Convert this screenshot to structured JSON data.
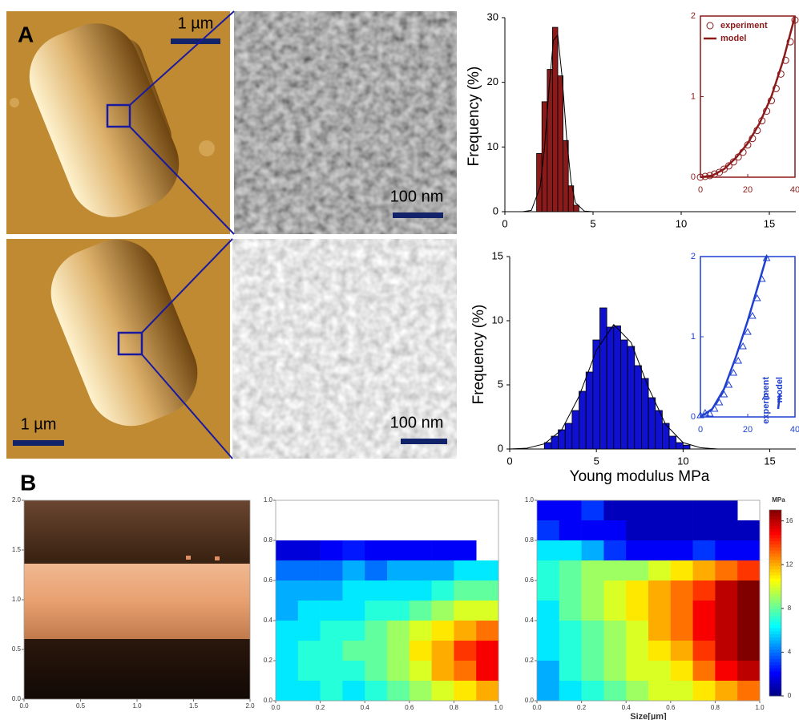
{
  "figure": {
    "panels": [
      "A",
      "B"
    ],
    "scale_bars": [
      "1 µm",
      "100 nm",
      "1 µm",
      "100 nm"
    ]
  },
  "chart_data": [
    {
      "type": "histogram",
      "color": "#8b1a1a",
      "bins": [
        1.8,
        2.1,
        2.4,
        2.7,
        3.0,
        3.3,
        3.6,
        3.9,
        4.2
      ],
      "values": [
        9,
        17,
        22,
        28.5,
        21,
        11,
        4,
        1
      ],
      "fit": {
        "x": [
          0,
          1,
          1.5,
          2,
          2.25,
          2.5,
          2.75,
          3,
          3.25,
          3.5,
          3.75,
          4,
          4.5,
          5,
          16.5
        ],
        "values": [
          0,
          0,
          0.2,
          3.8,
          9.9,
          18.9,
          26.5,
          27.3,
          20.7,
          11.5,
          4.7,
          1.4,
          0.1,
          0,
          0
        ]
      },
      "xlim": [
        0,
        16.5
      ],
      "xticks": [
        0,
        5,
        10,
        15
      ],
      "ylim": [
        0,
        30
      ],
      "yticks": [
        0,
        10,
        20,
        30
      ],
      "ylabel": "Frequency (%)",
      "inset": {
        "type": "scatter",
        "color": "#8b1a1a",
        "xlim": [
          0,
          40
        ],
        "xticks": [
          0,
          20,
          40
        ],
        "ylim": [
          0,
          2
        ],
        "yticks": [
          0,
          1,
          2
        ],
        "legend": "top-left",
        "series": [
          {
            "name": "experiment",
            "marker": "circle",
            "x": [
              0,
              2,
              4,
              6,
              8,
              10,
              12,
              14,
              16,
              18,
              20,
              22,
              24,
              26,
              28,
              30,
              32,
              34,
              36,
              38,
              40
            ],
            "values": [
              0,
              0.01,
              0.02,
              0.04,
              0.06,
              0.1,
              0.14,
              0.19,
              0.25,
              0.31,
              0.4,
              0.48,
              0.58,
              0.7,
              0.82,
              0.95,
              1.1,
              1.28,
              1.45,
              1.68,
              1.95
            ]
          },
          {
            "name": "model",
            "marker": "line",
            "x": [
              0,
              5,
              10,
              15,
              20,
              25,
              30,
              35,
              40
            ],
            "values": [
              0,
              0.02,
              0.1,
              0.24,
              0.42,
              0.67,
              1.0,
              1.45,
              2.0
            ]
          }
        ]
      }
    },
    {
      "type": "histogram",
      "color": "#1010d0",
      "bins": [
        2.0,
        2.4,
        2.8,
        3.2,
        3.6,
        4.0,
        4.4,
        4.8,
        5.2,
        5.6,
        6.0,
        6.4,
        6.8,
        7.2,
        7.6,
        8.0,
        8.4,
        8.8,
        9.2,
        9.6,
        10.0,
        10.4
      ],
      "values": [
        0.5,
        1,
        1.5,
        2,
        3,
        4.5,
        6,
        8.5,
        11,
        9.5,
        9.6,
        8.5,
        8,
        6.5,
        5.5,
        4,
        3,
        2,
        1,
        0.5,
        0.3
      ],
      "fit": {
        "x": [
          0,
          1,
          2,
          3,
          4,
          5,
          6,
          7,
          8,
          9,
          10,
          11,
          12,
          16.5
        ],
        "values": [
          0,
          0.06,
          0.4,
          1.5,
          4.1,
          7.7,
          9.7,
          8.3,
          4.8,
          1.9,
          0.5,
          0.1,
          0,
          0
        ]
      },
      "xlim": [
        0,
        16.5
      ],
      "xticks": [
        0,
        5,
        10,
        15
      ],
      "ylim": [
        0,
        15
      ],
      "yticks": [
        0,
        5,
        10,
        15
      ],
      "ylabel": "Frequency (%)",
      "xlabel": "Young modulus MPa",
      "inset": {
        "type": "scatter",
        "color": "#1f3fd0",
        "xlim": [
          0,
          40
        ],
        "xticks": [
          0,
          20,
          40
        ],
        "ylim": [
          0,
          2
        ],
        "yticks": [
          0,
          1,
          2
        ],
        "legend": "right-vertical",
        "series": [
          {
            "name": "experiment",
            "marker": "triangle",
            "x": [
              0,
              2,
              4,
              6,
              8,
              10,
              12,
              14,
              16,
              18,
              20,
              22,
              24,
              26,
              28
            ],
            "values": [
              0.02,
              0.05,
              0.04,
              0.1,
              0.18,
              0.28,
              0.4,
              0.55,
              0.7,
              0.88,
              1.06,
              1.26,
              1.48,
              1.72,
              1.98
            ]
          },
          {
            "name": "model",
            "marker": "line",
            "x": [
              0,
              5,
              10,
              15,
              20,
              25,
              28
            ],
            "values": [
              0,
              0.1,
              0.35,
              0.75,
              1.2,
              1.7,
              2.0
            ]
          }
        ]
      }
    },
    {
      "type": "image",
      "xlim": [
        0,
        2
      ],
      "xticks": [
        {
          "value": 0,
          "label": "0.0"
        },
        0.5,
        {
          "value": 1,
          "label": "1.0"
        },
        1.5,
        {
          "value": 2,
          "label": "2.0"
        }
      ],
      "ylim": [
        0,
        2
      ],
      "yticks": [
        {
          "value": 0,
          "label": "0.0"
        },
        0.5,
        {
          "value": 1,
          "label": "1.0"
        },
        1.5,
        {
          "value": 2,
          "label": "2.0"
        }
      ]
    },
    {
      "type": "heatmap",
      "colormap": "jet",
      "clim": [
        0,
        17
      ],
      "xlim": [
        0,
        1
      ],
      "xticks": [
        {
          "value": 0,
          "label": "0.0"
        },
        0.2,
        0.4,
        0.6,
        0.8,
        {
          "value": 1,
          "label": "1.0"
        }
      ],
      "ylim": [
        0,
        1
      ],
      "yticks": [
        {
          "value": 0,
          "label": "0.0"
        },
        0.2,
        0.4,
        0.6,
        0.8,
        {
          "value": 1,
          "label": "1.0"
        }
      ],
      "values": [
        [
          null,
          null,
          null,
          null,
          null,
          null,
          null,
          null,
          null,
          null
        ],
        [
          null,
          null,
          null,
          null,
          null,
          null,
          null,
          null,
          null,
          null
        ],
        [
          1.5,
          1.5,
          2,
          2.5,
          2,
          2,
          2,
          2,
          2,
          null
        ],
        [
          4,
          4,
          4,
          5,
          4,
          5,
          5,
          5,
          6,
          6
        ],
        [
          5,
          5,
          5,
          6,
          6,
          6,
          6,
          7,
          8,
          8
        ],
        [
          5,
          6,
          6,
          6,
          7,
          7,
          8,
          9,
          10,
          10
        ],
        [
          6,
          6,
          7,
          7,
          8,
          9,
          10,
          11,
          12,
          13
        ],
        [
          6,
          7,
          7,
          8,
          8,
          9,
          11,
          12,
          14,
          15
        ],
        [
          6,
          7,
          7,
          7,
          8,
          9,
          10,
          12,
          13,
          15
        ],
        [
          6,
          6,
          7,
          6,
          7,
          8,
          9,
          10,
          11,
          12
        ]
      ]
    },
    {
      "type": "heatmap",
      "colormap": "jet",
      "clim": [
        0,
        17
      ],
      "xlim": [
        0,
        1
      ],
      "xticks": [
        {
          "value": 0,
          "label": "0.0"
        },
        0.2,
        0.4,
        0.6,
        0.8,
        {
          "value": 1,
          "label": "1.0"
        }
      ],
      "ylim": [
        0,
        1
      ],
      "yticks": [
        {
          "value": 0,
          "label": "0.0"
        },
        0.2,
        0.4,
        0.6,
        0.8,
        {
          "value": 1,
          "label": "1.0"
        }
      ],
      "xlabel": "Size[µm]",
      "colorbar": {
        "label": "MPa",
        "ticks": [
          0,
          4,
          8,
          12,
          16
        ]
      },
      "values": [
        [
          2,
          2,
          3,
          1,
          1,
          1,
          1,
          1,
          1,
          null
        ],
        [
          3,
          2,
          2,
          2,
          1,
          1,
          1,
          1,
          1,
          1
        ],
        [
          6,
          6,
          5,
          3,
          2,
          2,
          2,
          3,
          2,
          2
        ],
        [
          7,
          8,
          9,
          9,
          9,
          10,
          11,
          12,
          13,
          14
        ],
        [
          7,
          8,
          9,
          10,
          11,
          12,
          13,
          14,
          16,
          17
        ],
        [
          6,
          8,
          9,
          10,
          11,
          12,
          13,
          15,
          16,
          17
        ],
        [
          6,
          7,
          8,
          9,
          10,
          12,
          13,
          15,
          16,
          17
        ],
        [
          6,
          7,
          8,
          9,
          10,
          11,
          12,
          14,
          16,
          17
        ],
        [
          5,
          7,
          8,
          9,
          10,
          10,
          11,
          13,
          15,
          16
        ],
        [
          5,
          6,
          7,
          8,
          9,
          10,
          10,
          11,
          12,
          13
        ]
      ]
    }
  ]
}
